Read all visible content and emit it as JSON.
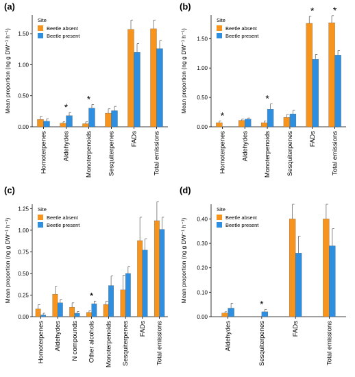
{
  "colors": {
    "beetle_absent": "#F7941D",
    "beetle_present": "#2E8FE0",
    "axis": "#000000"
  },
  "legend": {
    "title": "Site",
    "entries": [
      "Beetle absent",
      "Beetle present"
    ]
  },
  "significance_marker": "*",
  "chart_data": [
    {
      "panel_label": "(a)",
      "type": "bar",
      "ylabel": "Mean proportion (ng g DW⁻¹ h⁻¹)",
      "ylim": [
        0,
        1.8
      ],
      "yticks": [
        0,
        0.5,
        1.0,
        1.5
      ],
      "ytick_labels": [
        "0.00",
        "0.50",
        "1.00",
        "1.50"
      ],
      "categories": [
        "Homoterpenes",
        "Aldehydes",
        "Monoterpenoids",
        "Sesquiterpenes",
        "FADs",
        "Total emissions"
      ],
      "series": [
        {
          "name": "Beetle absent",
          "values": [
            0.12,
            0.06,
            0.05,
            0.22,
            1.57,
            1.58
          ],
          "errors": [
            0.05,
            0.02,
            0.03,
            0.07,
            0.15,
            0.14
          ]
        },
        {
          "name": "Beetle present",
          "values": [
            0.09,
            0.18,
            0.3,
            0.26,
            1.2,
            1.26
          ],
          "errors": [
            0.04,
            0.05,
            0.06,
            0.07,
            0.14,
            0.13
          ]
        }
      ],
      "significant": [
        false,
        true,
        true,
        false,
        false,
        false
      ],
      "legend_shown": true
    },
    {
      "panel_label": "(b)",
      "type": "bar",
      "ylabel": "Mean proportion (ng g DW⁻¹ h⁻¹)",
      "ylim": [
        0,
        1.9
      ],
      "yticks": [
        0,
        0.5,
        1.0,
        1.5
      ],
      "ytick_labels": [
        "0.00",
        "0.50",
        "1.00",
        "1.50"
      ],
      "categories": [
        "Homoterpenes",
        "Aldehydes",
        "Monoterpenoids",
        "Sesquiterpenes",
        "FADs",
        "Total emissions"
      ],
      "series": [
        {
          "name": "Beetle absent",
          "values": [
            0.07,
            0.11,
            0.07,
            0.16,
            1.76,
            1.77
          ],
          "errors": [
            0.03,
            0.02,
            0.03,
            0.05,
            0.12,
            0.12
          ]
        },
        {
          "name": "Beetle present",
          "values": [
            0.0,
            0.13,
            0.3,
            0.22,
            1.15,
            1.22
          ],
          "errors": [
            0.0,
            0.02,
            0.09,
            0.06,
            0.08,
            0.08
          ]
        }
      ],
      "significant": [
        true,
        false,
        true,
        false,
        true,
        true
      ],
      "legend_shown": true
    },
    {
      "panel_label": "(c)",
      "type": "bar",
      "ylabel": "Mean proportion (ng g DW⁻¹ h⁻¹)",
      "ylim": [
        0,
        1.3
      ],
      "yticks": [
        0,
        0.25,
        0.5,
        0.75,
        1.0,
        1.25
      ],
      "ytick_labels": [
        "0.00",
        "0.25",
        "0.50",
        "0.75",
        "1.00",
        "1.25"
      ],
      "categories": [
        "Homoterpenes",
        "Aldehydes",
        "N compounds",
        "Other alcohols",
        "Monoterpenoids",
        "Sesquiterpenes",
        "FADs",
        "Total emissions"
      ],
      "series": [
        {
          "name": "Beetle absent",
          "values": [
            0.09,
            0.26,
            0.11,
            0.05,
            0.14,
            0.31,
            0.88,
            1.11
          ],
          "errors": [
            0.05,
            0.09,
            0.05,
            0.02,
            0.04,
            0.17,
            0.27,
            0.22
          ]
        },
        {
          "name": "Beetle present",
          "values": [
            0.02,
            0.16,
            0.04,
            0.15,
            0.36,
            0.5,
            0.77,
            1.01
          ],
          "errors": [
            0.02,
            0.04,
            0.02,
            0.03,
            0.11,
            0.08,
            0.13,
            0.14
          ]
        }
      ],
      "significant": [
        false,
        false,
        false,
        true,
        false,
        false,
        false,
        false
      ],
      "legend_shown": true
    },
    {
      "panel_label": "(d)",
      "type": "bar",
      "ylabel": "Mean proportion (ng g DW⁻¹ h⁻¹)",
      "ylim": [
        0,
        0.46
      ],
      "yticks": [
        0,
        0.1,
        0.2,
        0.3,
        0.4
      ],
      "ytick_labels": [
        "0.00",
        "0.10",
        "0.20",
        "0.30",
        "0.40"
      ],
      "categories": [
        "Aldehydes",
        "Sesquiterpenes",
        "FADs",
        "Total emissions"
      ],
      "series": [
        {
          "name": "Beetle absent",
          "values": [
            0.015,
            0.0,
            0.4,
            0.4
          ],
          "errors": [
            0.005,
            0.0,
            0.06,
            0.06
          ]
        },
        {
          "name": "Beetle present",
          "values": [
            0.035,
            0.02,
            0.26,
            0.29
          ],
          "errors": [
            0.02,
            0.01,
            0.07,
            0.07
          ]
        }
      ],
      "significant": [
        false,
        true,
        false,
        false
      ],
      "legend_shown": true
    }
  ]
}
